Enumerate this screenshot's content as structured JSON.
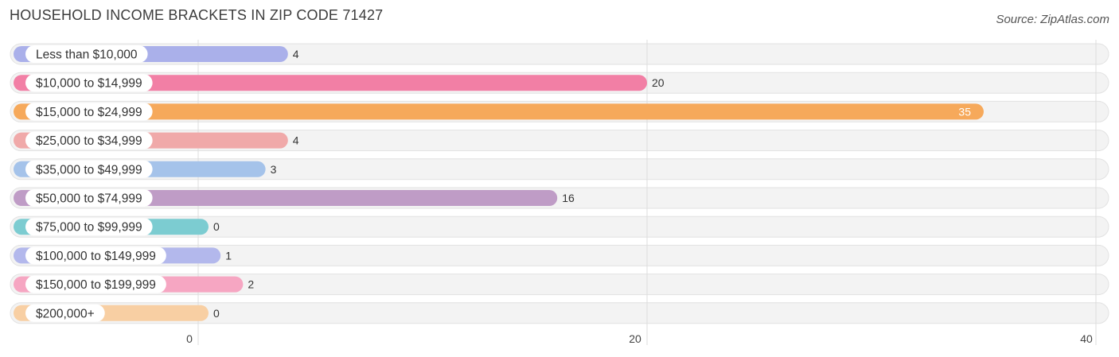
{
  "title": "HOUSEHOLD INCOME BRACKETS IN ZIP CODE 71427",
  "source": "Source: ZipAtlas.com",
  "chart_data": {
    "type": "bar",
    "orientation": "horizontal",
    "title": "HOUSEHOLD INCOME BRACKETS IN ZIP CODE 71427",
    "categories": [
      "Less than $10,000",
      "$10,000 to $14,999",
      "$15,000 to $24,999",
      "$25,000 to $34,999",
      "$35,000 to $49,999",
      "$50,000 to $74,999",
      "$75,000 to $99,999",
      "$100,000 to $149,999",
      "$150,000 to $199,999",
      "$200,000+"
    ],
    "values": [
      4,
      20,
      35,
      4,
      3,
      16,
      0,
      1,
      2,
      0
    ],
    "colors": [
      "#aab0ea",
      "#f27fa5",
      "#f6a95b",
      "#f0a9a9",
      "#a5c3ea",
      "#bf9cc6",
      "#7cccd1",
      "#b3b8ec",
      "#f6a6c2",
      "#f8cfa3"
    ],
    "xlim": [
      0,
      40
    ],
    "xticks": [
      0,
      20,
      40
    ],
    "grid": true,
    "legend": "none"
  }
}
